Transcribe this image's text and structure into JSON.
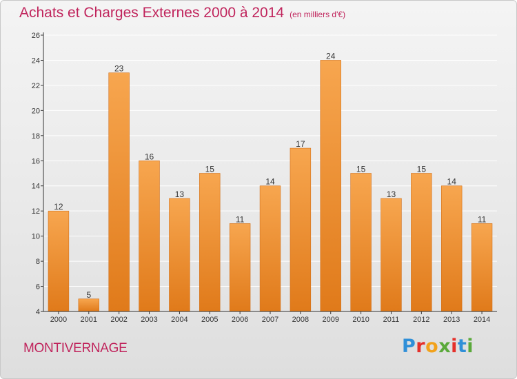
{
  "title": "Achats et Charges Externes 2000 à 2014",
  "subtitle": "(en milliers d'€)",
  "commune": "MONTIVERNAGE",
  "logo": {
    "letters": [
      "P",
      "r",
      "o",
      "x",
      "i",
      "t",
      "i"
    ],
    "colors": [
      "#2f8fd8",
      "#e5302a",
      "#f2a21b",
      "#5aa93a",
      "#e5302a",
      "#2f8fd8",
      "#5aa93a"
    ]
  },
  "colors": {
    "title": "#c0245c",
    "bar_top": "#f7a64f",
    "bar_bottom": "#e07a1a",
    "axis": "#333333",
    "grid": "#ffffff"
  },
  "chart_data": {
    "type": "bar",
    "categories": [
      "2000",
      "2001",
      "2002",
      "2003",
      "2004",
      "2005",
      "2006",
      "2007",
      "2008",
      "2009",
      "2010",
      "2011",
      "2012",
      "2013",
      "2014"
    ],
    "values": [
      12,
      5,
      23,
      16,
      13,
      15,
      11,
      14,
      17,
      24,
      15,
      13,
      15,
      14,
      11
    ],
    "ylim": [
      4,
      26
    ],
    "yticks": [
      4,
      6,
      8,
      10,
      12,
      14,
      16,
      18,
      20,
      22,
      24,
      26
    ],
    "grid": true,
    "legend": "none"
  }
}
